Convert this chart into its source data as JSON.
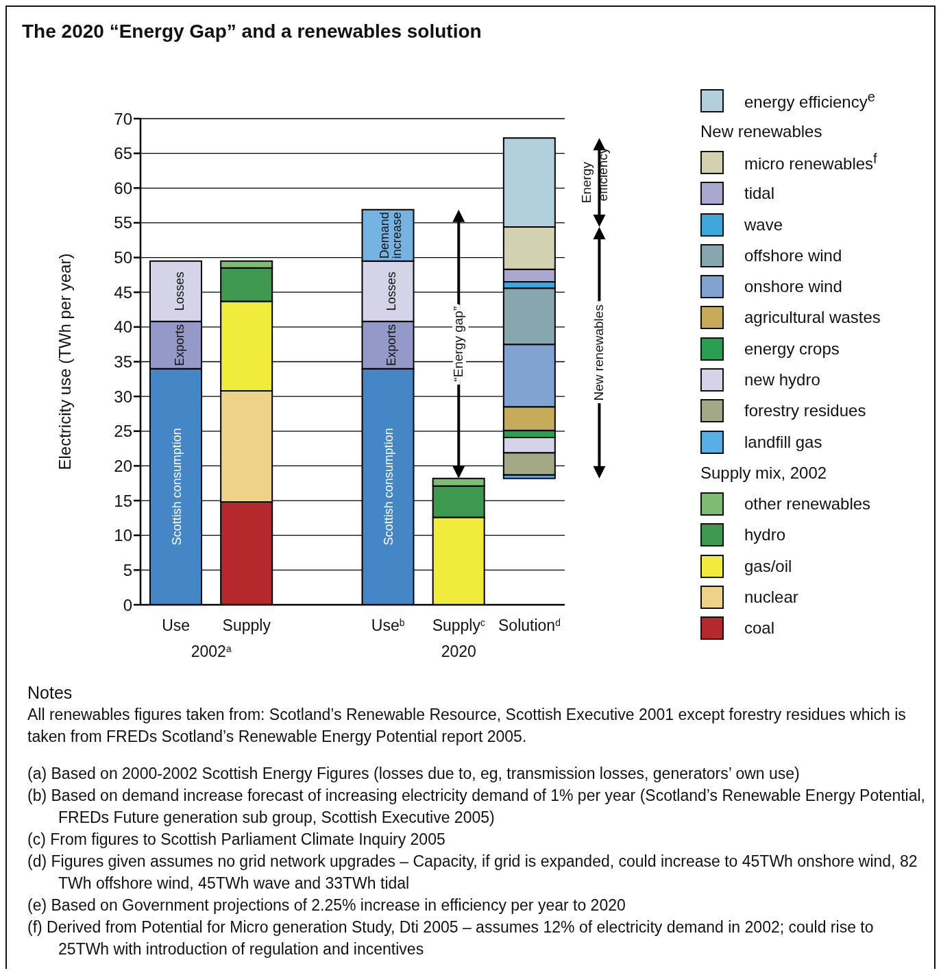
{
  "chart_data": {
    "type": "bar",
    "title": "The 2020 “Energy Gap” and a renewables solution",
    "ylabel": "Electricity use (TWh per year)",
    "categories": [
      "Use",
      "Supply",
      null,
      "Use$^{b}$",
      "Supply$^{c}$",
      "Solution$^{d}$"
    ],
    "stacked": true,
    "ylim": [
      0,
      70
    ],
    "yticks": [
      0,
      5,
      10,
      15,
      20,
      25,
      30,
      35,
      40,
      45,
      50,
      55,
      60,
      65,
      70
    ],
    "grid": "y",
    "legend": "right",
    "series": [
      {
        "name": "Scottish consumption",
        "color": "#4587c6",
        "values": [
          34.0,
          null,
          null,
          34.0,
          null,
          null
        ]
      },
      {
        "name": "Exports",
        "color": "#9599c8",
        "values": [
          6.8,
          null,
          null,
          6.8,
          null,
          null
        ]
      },
      {
        "name": "Losses",
        "color": "#d5d3e8",
        "values": [
          8.7,
          null,
          null,
          8.7,
          null,
          null
        ]
      },
      {
        "name": "Demand increase",
        "color": "#75b3e3",
        "values": [
          null,
          null,
          null,
          7.4,
          null,
          null
        ]
      },
      {
        "name": "coal",
        "color": "#b5292d",
        "values": [
          null,
          14.8,
          null,
          null,
          null,
          null
        ]
      },
      {
        "name": "nuclear",
        "color": "#edd38a",
        "values": [
          null,
          16.0,
          null,
          null,
          null,
          null
        ]
      },
      {
        "name": "gas/oil",
        "color": "#f1ec3c",
        "values": [
          null,
          12.9,
          null,
          null,
          12.6,
          null
        ]
      },
      {
        "name": "hydro",
        "color": "#3f9850",
        "values": [
          null,
          4.8,
          null,
          null,
          4.5,
          null
        ]
      },
      {
        "name": "other renewables",
        "color": "#7fbc73",
        "values": [
          null,
          1.0,
          null,
          null,
          1.1,
          null
        ]
      },
      {
        "name": "landfill gas",
        "color": "#58afe8",
        "values": [
          null,
          null,
          null,
          null,
          null,
          0.5
        ],
        "base": [
          null,
          null,
          null,
          null,
          null,
          18.2
        ]
      },
      {
        "name": "forestry residues",
        "color": "#a3a886",
        "values": [
          null,
          null,
          null,
          null,
          null,
          3.2
        ]
      },
      {
        "name": "new hydro",
        "color": "#d5d3e8",
        "values": [
          null,
          null,
          null,
          null,
          null,
          2.2
        ]
      },
      {
        "name": "energy crops",
        "color": "#2b9f50",
        "values": [
          null,
          null,
          null,
          null,
          null,
          1.0
        ]
      },
      {
        "name": "agricultural wastes",
        "color": "#c6ab58",
        "values": [
          null,
          null,
          null,
          null,
          null,
          3.4
        ]
      },
      {
        "name": "onshore wind",
        "color": "#81a3d2",
        "values": [
          null,
          null,
          null,
          null,
          null,
          9.0
        ]
      },
      {
        "name": "offshore wind",
        "color": "#86a7ae",
        "values": [
          null,
          null,
          null,
          null,
          null,
          8.1
        ]
      },
      {
        "name": "wave",
        "color": "#3ea8db",
        "values": [
          null,
          null,
          null,
          null,
          null,
          0.9
        ]
      },
      {
        "name": "tidal",
        "color": "#aba8d0",
        "values": [
          null,
          null,
          null,
          null,
          null,
          1.8
        ]
      },
      {
        "name": "micro renewables$^{f}$",
        "color": "#d2d1b0",
        "values": [
          null,
          null,
          null,
          null,
          null,
          6.1
        ]
      },
      {
        "name": "energy efficiency$^{e}$",
        "color": "#b2cfdd",
        "values": [
          null,
          null,
          null,
          null,
          null,
          12.8
        ]
      }
    ],
    "annotations": [
      "New renewables",
      "Supply mix, 2002",
      "2002$^{a}$",
      "2020",
      "“Energy gap”",
      "Energy efficiency",
      "New renewables",
      "Notes",
      "All renewables figures taken from: Scotland’s Renewable Resource, Scottish Executive 2001 except forestry residues which is taken from FREDs Scotland’s Renewable Energy Potential report 2005.",
      "(a) Based on 2000-2002 Scottish Energy Figures (losses due to, eg, transmission losses, generators’ own use)",
      "(b) Based on demand increase forecast of increasing electricity demand of 1% per year (Scotland’s Renewable Energy Potential, FREDs Future generation sub group, Scottish Executive 2005)",
      "(c) From figures to Scottish Parliament Climate Inquiry 2005",
      "(d) Figures given assumes no grid network upgrades – Capacity, if grid is expanded, could increase to 45TWh onshore wind, 82 TWh offshore wind, 45TWh wave and 33TWh tidal",
      "(e) Based on Government projections of 2.25% increase in efficiency per year to 2020",
      "(f) Derived from Potential for Micro generation Study, Dti 2005 – assumes 12% of electricity demand in 2002; could rise to 25TWh with introduction of regulation and incentives"
    ]
  }
}
